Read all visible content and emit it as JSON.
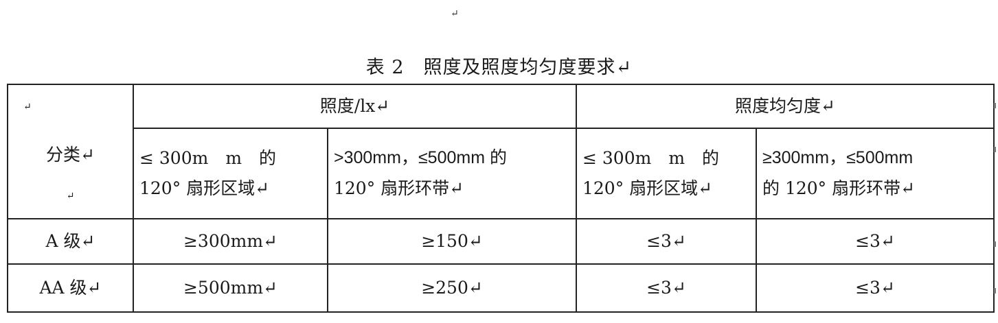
{
  "document": {
    "top_mark": "↵",
    "title": "表 2　照度及照度均匀度要求↵"
  },
  "table": {
    "corner_mark": "↵",
    "category_label": "分类↵",
    "category_mark": "↵",
    "group_headers": [
      "照度/lx↵",
      "照度均匀度↵"
    ],
    "sub_headers": [
      {
        "line1": "≤ 300m　m　的",
        "line2": "120° 扇形区域↵"
      },
      {
        "line1": ">300mm，≤500mm 的",
        "line2": "120° 扇形环带↵"
      },
      {
        "line1": "≤ 300m　m　的",
        "line2": "120° 扇形区域↵"
      },
      {
        "line1": "≥300mm，≤500mm",
        "line2": "的 120° 扇形环带↵"
      }
    ],
    "rows": [
      {
        "label": "A 级↵",
        "cells": [
          "≥300mm↵",
          "≥150↵",
          "≤3↵",
          "≤3↵"
        ]
      },
      {
        "label": "AA 级↵",
        "cells": [
          "≥500mm↵",
          "≥250↵",
          "≤3↵",
          "≤3↵"
        ]
      }
    ]
  }
}
